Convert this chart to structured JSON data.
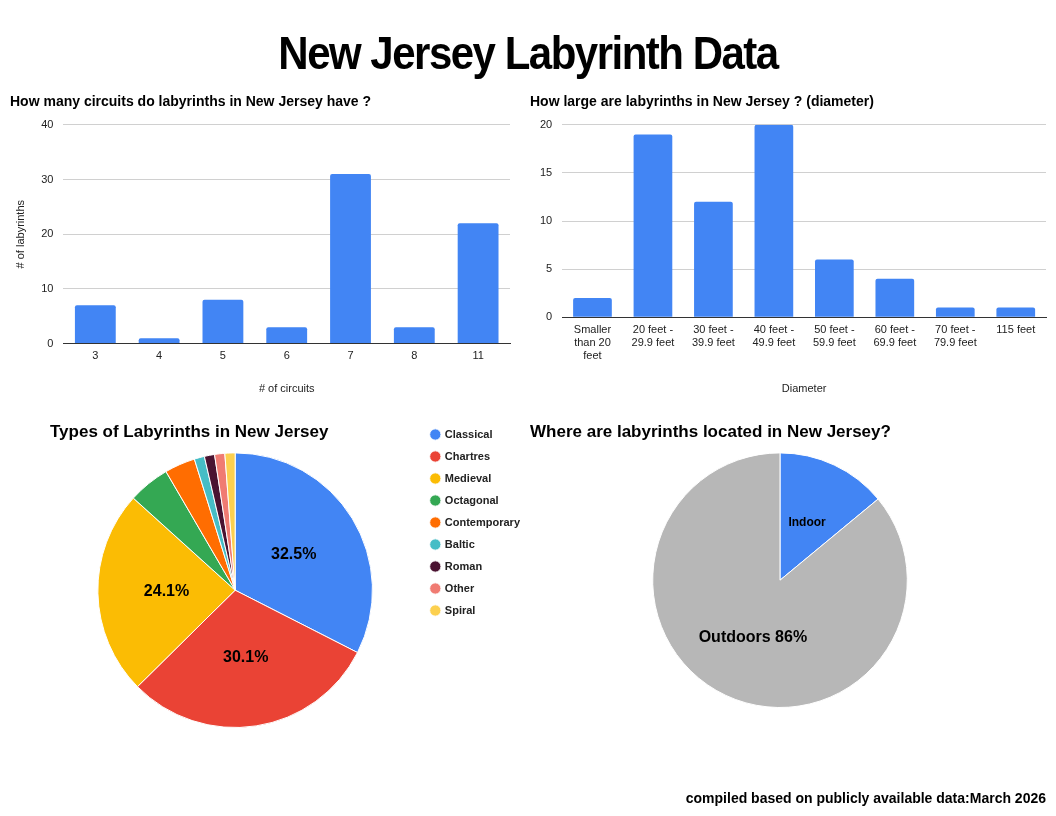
{
  "chart_data": [
    {
      "type": "other",
      "title": "New Jersey Labyrinth Data",
      "annotations": [
        "compiled based on publicly available data:March 2026"
      ]
    },
    {
      "type": "bar",
      "title": "How many circuits do labyrinths in New Jersey have ?",
      "xlabel": "# of circuits",
      "ylabel": "# of labyrinths",
      "categories": [
        "3",
        "4",
        "5",
        "6",
        "7",
        "8",
        "11"
      ],
      "values": [
        7,
        1,
        8,
        3,
        31,
        3,
        22
      ],
      "color": "#4285f4",
      "ylim": [
        0,
        40
      ],
      "yticks": [
        0,
        10,
        20,
        30,
        40
      ],
      "grid": "y",
      "legend": false
    },
    {
      "type": "bar",
      "title": "How large are labyrinths in New Jersey ? (diameter)",
      "xlabel": "Diameter",
      "categories": [
        "Smaller than 20 feet",
        "20 feet - 29.9 feet",
        "30 feet - 39.9 feet",
        "40 feet - 49.9 feet",
        "50 feet - 59.9 feet",
        "60 feet - 69.9 feet",
        "70 feet - 79.9 feet",
        "115 feet"
      ],
      "values": [
        2,
        19,
        12,
        20,
        6,
        4,
        1,
        1
      ],
      "color": "#4285f4",
      "ylim": [
        0,
        20
      ],
      "yticks": [
        0,
        5,
        10,
        15,
        20
      ],
      "grid": "y",
      "legend": false
    },
    {
      "type": "pie",
      "title": "Types of Labyrinths in New Jersey",
      "categories": [
        "Classical",
        "Chartres",
        "Medieval",
        "Octagonal",
        "Contemporary",
        "Baltic",
        "Roman",
        "Other",
        "Spiral"
      ],
      "values": [
        32.5,
        30.1,
        24.1,
        4.9,
        3.6,
        1.2,
        1.2,
        1.2,
        1.2
      ],
      "colors": [
        "#4285f4",
        "#ea4335",
        "#fbbc04",
        "#34a853",
        "#ff6d01",
        "#46bdc6",
        "#4a1331",
        "#f07b72",
        "#fcd04f"
      ],
      "value_labels": [
        "32.5%",
        "30.1%",
        "24.1%",
        null,
        null,
        null,
        null,
        null,
        null
      ],
      "legend": "right"
    },
    {
      "type": "pie",
      "title": "Where are labyrinths located in New Jersey?",
      "categories": [
        "Indoor",
        "Outdoors"
      ],
      "values": [
        14,
        86
      ],
      "colors": [
        "#4285f4",
        "#b7b7b7"
      ],
      "value_labels": [
        null,
        "86%"
      ],
      "legend": false
    }
  ]
}
